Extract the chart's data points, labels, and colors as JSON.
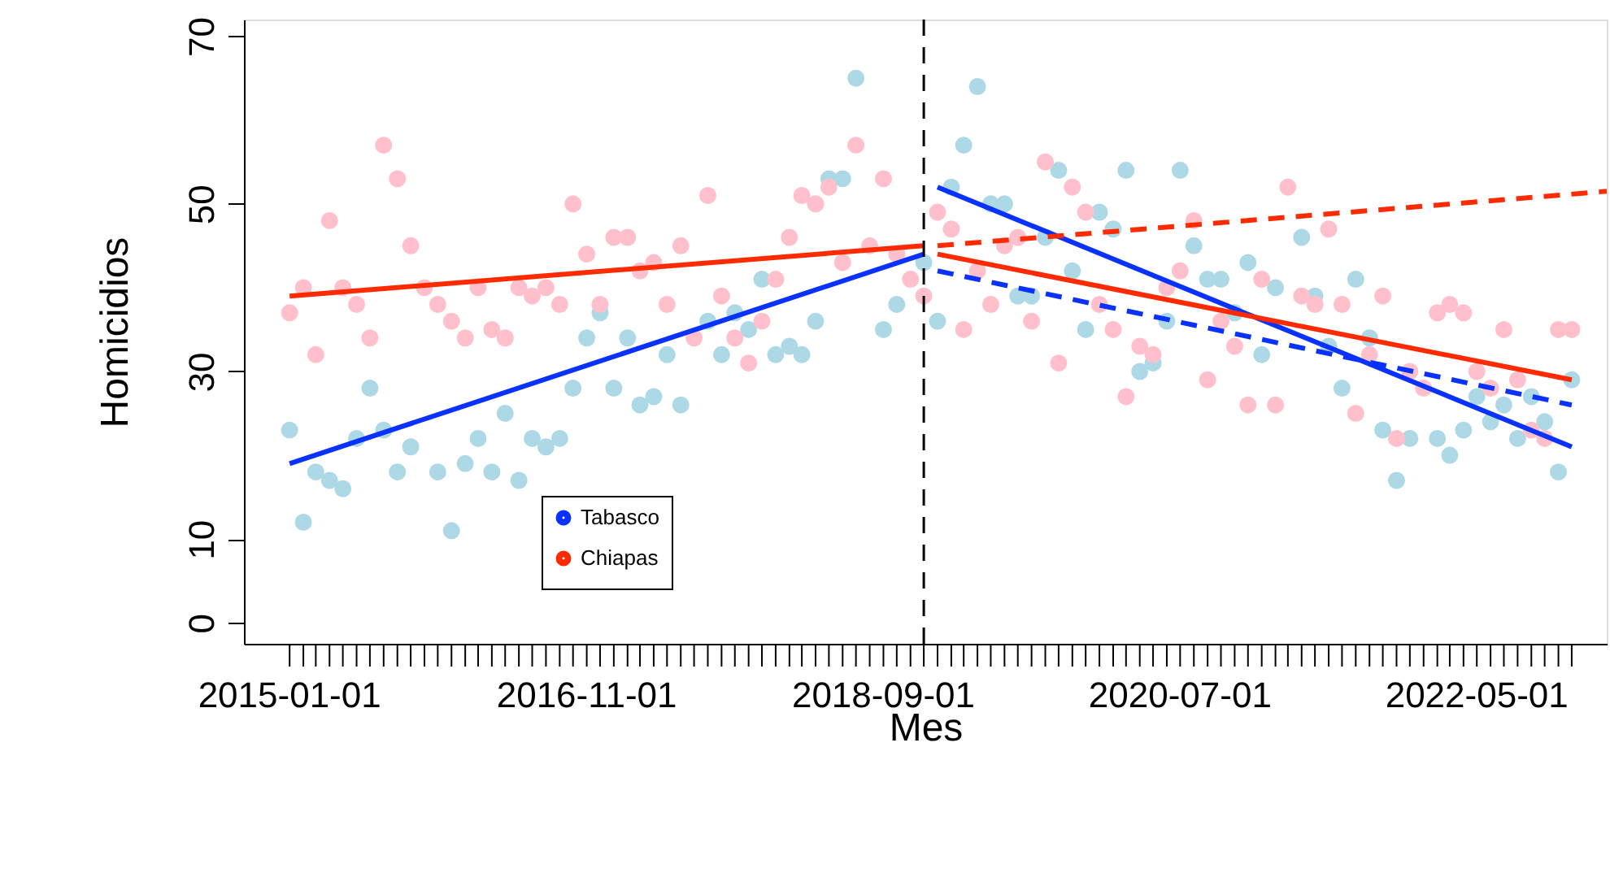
{
  "chart_data": {
    "type": "scatter",
    "xlabel": "Mes",
    "ylabel": "Homicidios",
    "marker": "circle",
    "grid": false,
    "legend": "bottom left",
    "x": [
      "2015-01",
      "2015-02",
      "2015-03",
      "2015-04",
      "2015-05",
      "2015-06",
      "2015-07",
      "2015-08",
      "2015-09",
      "2015-10",
      "2015-11",
      "2015-12",
      "2016-01",
      "2016-02",
      "2016-03",
      "2016-04",
      "2016-05",
      "2016-06",
      "2016-07",
      "2016-08",
      "2016-09",
      "2016-10",
      "2016-11",
      "2016-12",
      "2017-01",
      "2017-02",
      "2017-03",
      "2017-04",
      "2017-05",
      "2017-06",
      "2017-07",
      "2017-08",
      "2017-09",
      "2017-10",
      "2017-11",
      "2017-12",
      "2018-01",
      "2018-02",
      "2018-03",
      "2018-04",
      "2018-05",
      "2018-06",
      "2018-07",
      "2018-08",
      "2018-09",
      "2018-10",
      "2018-11",
      "2018-12",
      "2019-01",
      "2019-02",
      "2019-03",
      "2019-04",
      "2019-05",
      "2019-06",
      "2019-07",
      "2019-08",
      "2019-09",
      "2019-10",
      "2019-11",
      "2019-12",
      "2020-01",
      "2020-02",
      "2020-03",
      "2020-04",
      "2020-05",
      "2020-06",
      "2020-07",
      "2020-08",
      "2020-09",
      "2020-10",
      "2020-11",
      "2020-12",
      "2021-01",
      "2021-02",
      "2021-03",
      "2021-04",
      "2021-05",
      "2021-06",
      "2021-07",
      "2021-08",
      "2021-09",
      "2021-10",
      "2021-11",
      "2021-12",
      "2022-01",
      "2022-02",
      "2022-03",
      "2022-04",
      "2022-05",
      "2022-06",
      "2022-07",
      "2022-08",
      "2022-09",
      "2022-10",
      "2022-11",
      "2022-12"
    ],
    "series": [
      {
        "color": "#add8e6",
        "values": [
          23,
          12,
          18,
          17,
          16,
          22,
          28,
          23,
          18,
          21,
          null,
          18,
          11,
          19,
          22,
          18,
          25,
          17,
          22,
          21,
          22,
          28,
          34,
          37,
          28,
          34,
          26,
          27,
          32,
          26,
          null,
          36,
          32,
          37,
          35,
          41,
          32,
          33,
          32,
          36,
          53,
          53,
          65,
          null,
          35,
          38,
          null,
          43,
          36,
          52,
          57,
          64,
          50,
          50,
          39,
          39,
          46,
          54,
          42,
          35,
          49,
          47,
          54,
          30,
          31,
          36,
          54,
          45,
          41,
          41,
          37,
          43,
          32,
          40,
          null,
          46,
          39,
          33,
          28,
          41,
          34,
          23,
          17,
          22,
          null,
          22,
          20,
          23,
          27,
          24,
          26,
          22,
          27,
          24,
          18,
          29
        ]
      },
      {
        "color": "#ffc0cb",
        "values": [
          37,
          40,
          32,
          48,
          40,
          38,
          34,
          57,
          53,
          45,
          40,
          38,
          36,
          34,
          40,
          35,
          34,
          40,
          39,
          40,
          38,
          50,
          44,
          38,
          46,
          46,
          42,
          43,
          38,
          45,
          34,
          51,
          39,
          34,
          31,
          36,
          41,
          46,
          51,
          50,
          52,
          43,
          57,
          45,
          53,
          44,
          41,
          39,
          49,
          47,
          35,
          42,
          38,
          45,
          46,
          36,
          55,
          31,
          52,
          49,
          38,
          35,
          27,
          33,
          32,
          40,
          42,
          48,
          29,
          36,
          33,
          26,
          41,
          26,
          52,
          39,
          38,
          47,
          38,
          25,
          32,
          39,
          22,
          30,
          28,
          37,
          38,
          37,
          30,
          28,
          35,
          29,
          23,
          22,
          35,
          35
        ]
      },
      {
        "name": "Tabasco",
        "type": "line",
        "marker": "none",
        "line_style": "solid",
        "color": "#0a32ff",
        "x": [
          "2015-01",
          "2018-12"
        ],
        "values": [
          19,
          44
        ]
      },
      {
        "name": "Chiapas",
        "type": "line",
        "marker": "none",
        "line_style": "solid",
        "color": "#ff2a00",
        "x": [
          "2015-01",
          "2018-12"
        ],
        "values": [
          39,
          45
        ]
      },
      {
        "type": "line",
        "marker": "none",
        "line_style": "solid",
        "color": "#0a32ff",
        "x": [
          "2019-01",
          "2022-12"
        ],
        "values": [
          52,
          21
        ]
      },
      {
        "type": "line",
        "marker": "none",
        "line_style": "solid",
        "color": "#ff2a00",
        "x": [
          "2019-01",
          "2022-12"
        ],
        "values": [
          44,
          29
        ]
      },
      {
        "type": "line",
        "marker": "none",
        "line_style": "dashed",
        "color": "#0a32ff",
        "x": [
          "2019-01",
          "2022-12"
        ],
        "values": [
          42,
          26
        ]
      },
      {
        "type": "line",
        "marker": "none",
        "line_style": "dashed",
        "color": "#ff2a00",
        "x": [
          "2019-01",
          "2023-02-18"
        ],
        "values": [
          45,
          51.5
        ]
      }
    ],
    "xlim": [
      "2014-09-20",
      "2023-02-18"
    ],
    "ylim": [
      -2.5,
      72
    ],
    "yticks": [
      0,
      10,
      30,
      50,
      70
    ],
    "xticks": [
      {
        "value": "2015-01",
        "label": "2015-01-01"
      },
      {
        "value": "2015-02",
        "label": null
      },
      {
        "value": "2015-03",
        "label": null
      },
      {
        "value": "2015-04",
        "label": null
      },
      {
        "value": "2015-05",
        "label": null
      },
      {
        "value": "2015-06",
        "label": null
      },
      {
        "value": "2015-07",
        "label": null
      },
      {
        "value": "2015-08",
        "label": null
      },
      {
        "value": "2015-09",
        "label": null
      },
      {
        "value": "2015-10",
        "label": null
      },
      {
        "value": "2015-11",
        "label": null
      },
      {
        "value": "2015-12",
        "label": null
      },
      {
        "value": "2016-01",
        "label": null
      },
      {
        "value": "2016-02",
        "label": null
      },
      {
        "value": "2016-03",
        "label": null
      },
      {
        "value": "2016-04",
        "label": null
      },
      {
        "value": "2016-05",
        "label": null
      },
      {
        "value": "2016-06",
        "label": null
      },
      {
        "value": "2016-07",
        "label": null
      },
      {
        "value": "2016-08",
        "label": null
      },
      {
        "value": "2016-09",
        "label": null
      },
      {
        "value": "2016-10",
        "label": null
      },
      {
        "value": "2016-11",
        "label": "2016-11-01"
      },
      {
        "value": "2016-12",
        "label": null
      },
      {
        "value": "2017-01",
        "label": null
      },
      {
        "value": "2017-02",
        "label": null
      },
      {
        "value": "2017-03",
        "label": null
      },
      {
        "value": "2017-04",
        "label": null
      },
      {
        "value": "2017-05",
        "label": null
      },
      {
        "value": "2017-06",
        "label": null
      },
      {
        "value": "2017-07",
        "label": null
      },
      {
        "value": "2017-08",
        "label": null
      },
      {
        "value": "2017-09",
        "label": null
      },
      {
        "value": "2017-10",
        "label": null
      },
      {
        "value": "2017-11",
        "label": null
      },
      {
        "value": "2017-12",
        "label": null
      },
      {
        "value": "2018-01",
        "label": null
      },
      {
        "value": "2018-02",
        "label": null
      },
      {
        "value": "2018-03",
        "label": null
      },
      {
        "value": "2018-04",
        "label": null
      },
      {
        "value": "2018-05",
        "label": null
      },
      {
        "value": "2018-06",
        "label": null
      },
      {
        "value": "2018-07",
        "label": null
      },
      {
        "value": "2018-08",
        "label": null
      },
      {
        "value": "2018-09",
        "label": "2018-09-01"
      },
      {
        "value": "2018-10",
        "label": null
      },
      {
        "value": "2018-11",
        "label": null
      },
      {
        "value": "2018-12",
        "label": null
      },
      {
        "value": "2019-01",
        "label": null
      },
      {
        "value": "2019-02",
        "label": null
      },
      {
        "value": "2019-03",
        "label": null
      },
      {
        "value": "2019-04",
        "label": null
      },
      {
        "value": "2019-05",
        "label": null
      },
      {
        "value": "2019-06",
        "label": null
      },
      {
        "value": "2019-07",
        "label": null
      },
      {
        "value": "2019-08",
        "label": null
      },
      {
        "value": "2019-09",
        "label": null
      },
      {
        "value": "2019-10",
        "label": null
      },
      {
        "value": "2019-11",
        "label": null
      },
      {
        "value": "2019-12",
        "label": null
      },
      {
        "value": "2020-01",
        "label": null
      },
      {
        "value": "2020-02",
        "label": null
      },
      {
        "value": "2020-03",
        "label": null
      },
      {
        "value": "2020-04",
        "label": null
      },
      {
        "value": "2020-05",
        "label": null
      },
      {
        "value": "2020-06",
        "label": null
      },
      {
        "value": "2020-07",
        "label": "2020-07-01"
      },
      {
        "value": "2020-08",
        "label": null
      },
      {
        "value": "2020-09",
        "label": null
      },
      {
        "value": "2020-10",
        "label": null
      },
      {
        "value": "2020-11",
        "label": null
      },
      {
        "value": "2020-12",
        "label": null
      },
      {
        "value": "2021-01",
        "label": null
      },
      {
        "value": "2021-02",
        "label": null
      },
      {
        "value": "2021-03",
        "label": null
      },
      {
        "value": "2021-04",
        "label": null
      },
      {
        "value": "2021-05",
        "label": null
      },
      {
        "value": "2021-06",
        "label": null
      },
      {
        "value": "2021-07",
        "label": null
      },
      {
        "value": "2021-08",
        "label": null
      },
      {
        "value": "2021-09",
        "label": null
      },
      {
        "value": "2021-10",
        "label": null
      },
      {
        "value": "2021-11",
        "label": null
      },
      {
        "value": "2021-12",
        "label": null
      },
      {
        "value": "2022-01",
        "label": null
      },
      {
        "value": "2022-02",
        "label": null
      },
      {
        "value": "2022-03",
        "label": null
      },
      {
        "value": "2022-04",
        "label": null
      },
      {
        "value": "2022-05",
        "label": "2022-05-01"
      },
      {
        "value": "2022-06",
        "label": null
      },
      {
        "value": "2022-07",
        "label": null
      },
      {
        "value": "2022-08",
        "label": null
      },
      {
        "value": "2022-09",
        "label": null
      },
      {
        "value": "2022-10",
        "label": null
      },
      {
        "value": "2022-11",
        "label": null
      },
      {
        "value": "2022-12",
        "label": null
      }
    ],
    "ref_lines": [
      {
        "axis": "x",
        "value": "2018-12",
        "line_style": "dashed",
        "color": "#000000"
      }
    ]
  }
}
